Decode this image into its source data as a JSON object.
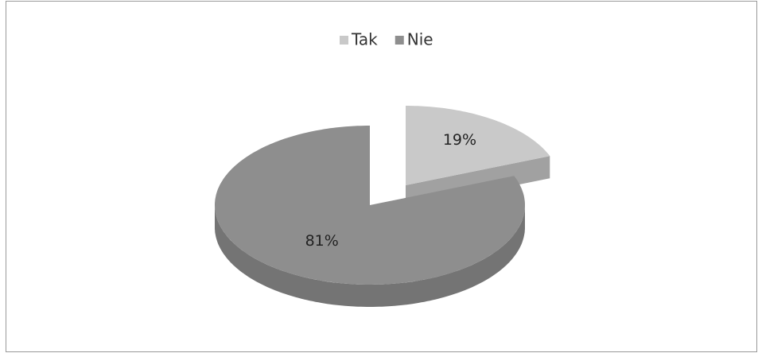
{
  "chart_data": {
    "type": "pie",
    "categories": [
      "Tak",
      "Nie"
    ],
    "values": [
      19,
      81
    ],
    "value_labels": [
      "19%",
      "81%"
    ],
    "colors": [
      "#c9c9c9",
      "#8e8e8e"
    ],
    "legend": "top"
  }
}
